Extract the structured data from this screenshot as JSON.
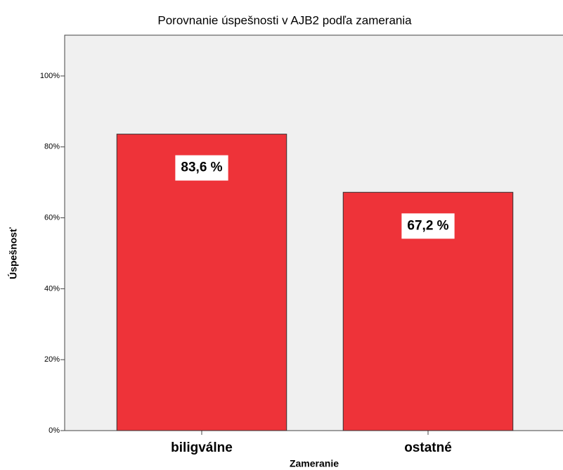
{
  "chart_data": {
    "type": "bar",
    "title": "Porovnanie úspešnosti v AJB2 podľa zamerania",
    "xlabel": "Zameranie",
    "ylabel": "Úspešnosť",
    "categories": [
      "biligválne",
      "ostatné"
    ],
    "values": [
      83.6,
      67.2
    ],
    "value_labels": [
      "83,6 %",
      "67,2 %"
    ],
    "color": "#ee3339",
    "ylim": [
      0,
      111.5
    ],
    "yticks": [
      {
        "value": 0,
        "label": "0%"
      },
      {
        "value": 20,
        "label": "20%"
      },
      {
        "value": 40,
        "label": "40%"
      },
      {
        "value": 60,
        "label": "60%"
      },
      {
        "value": 80,
        "label": "80%"
      },
      {
        "value": 100,
        "label": "100%"
      }
    ],
    "grid": false
  }
}
